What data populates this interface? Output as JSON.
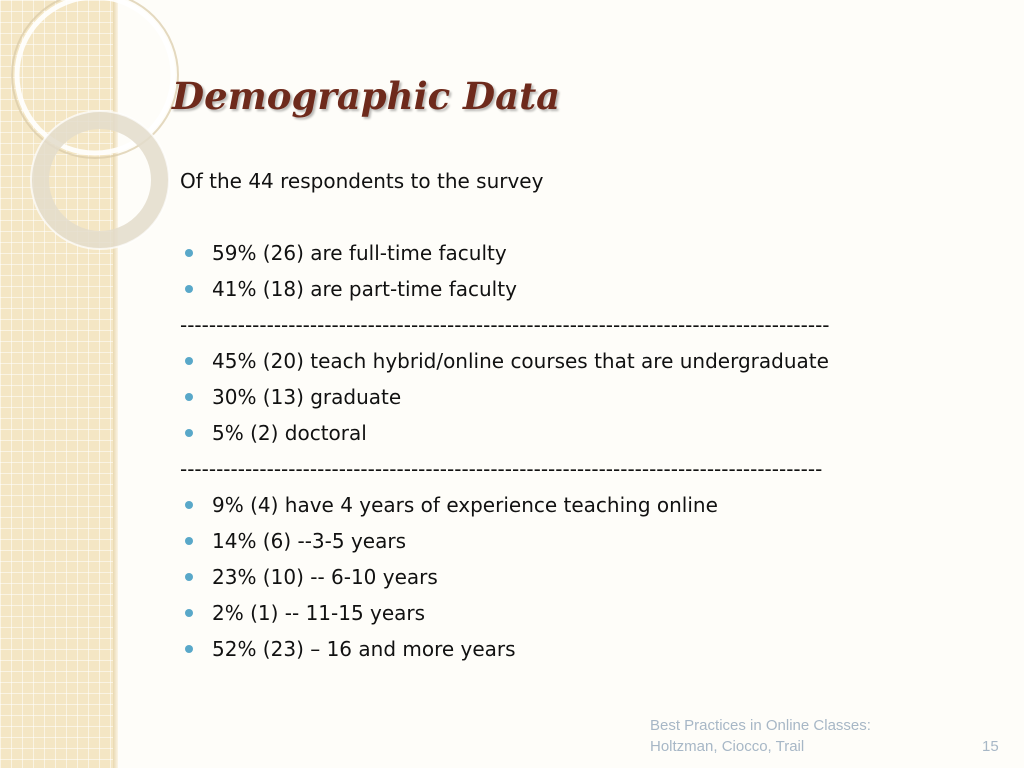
{
  "slide": {
    "title": "Demographic Data",
    "intro": "Of the 44 respondents to the survey",
    "group1": [
      "59% (26) are full-time faculty",
      "41% (18) are part-time faculty"
    ],
    "separator1": "------------------------------------------------------------------------------------------",
    "group2": [
      "45% (20) teach hybrid/online courses that are undergraduate",
      "30% (13) graduate",
      "5% (2) doctoral"
    ],
    "separator2": "-----------------------------------------------------------------------------------------",
    "group3": [
      "9% (4) have 4 years of experience teaching online",
      "14% (6) --3-5 years",
      "23% (10) -- 6-10 years",
      "2% (1) -- 11-15 years",
      "52% (23) – 16 and more years"
    ]
  },
  "footer": {
    "line1": "Best Practices in Online Classes:",
    "line2": "Holtzman, Ciocco, Trail",
    "page_number": "15"
  },
  "colors": {
    "title": "#6e2a1c",
    "bullet": "#59a8c9",
    "sidebar": "#f4e6c4",
    "footer_text": "#a7b7c6"
  }
}
